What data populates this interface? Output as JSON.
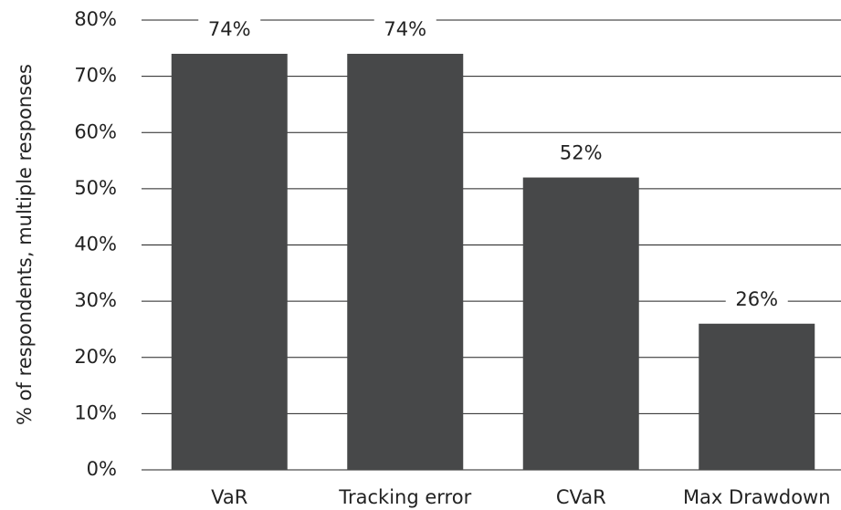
{
  "chart_data": {
    "type": "bar",
    "ylabel": "% of respondents, multiple responses",
    "categories": [
      "VaR",
      "Tracking error",
      "CVaR",
      "Max Drawdown"
    ],
    "values": [
      74,
      74,
      52,
      26
    ],
    "value_labels": [
      "74%",
      "74%",
      "52%",
      "26%"
    ],
    "color": "#474849",
    "ylim": [
      0,
      80
    ],
    "yticks": [
      {
        "value": 0,
        "label": "0%"
      },
      {
        "value": 10,
        "label": "10%"
      },
      {
        "value": 20,
        "label": "20%"
      },
      {
        "value": 30,
        "label": "30%"
      },
      {
        "value": 40,
        "label": "40%"
      },
      {
        "value": 50,
        "label": "50%"
      },
      {
        "value": 60,
        "label": "60%"
      },
      {
        "value": 70,
        "label": "70%"
      },
      {
        "value": 80,
        "label": "80%"
      }
    ],
    "grid": true
  }
}
